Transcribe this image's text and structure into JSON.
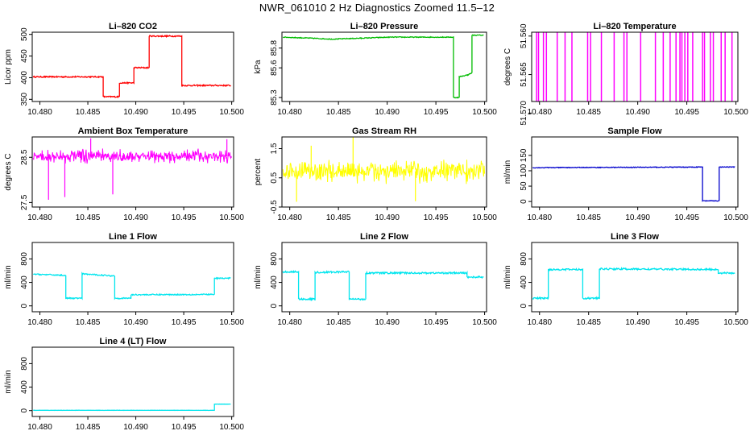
{
  "page_title": "NWR_061010  2 Hz Diagnostics Zoomed 11.5–12",
  "colors": {
    "co2": "#ff0000",
    "pressure": "#00bb00",
    "temperature": "#ff00ff",
    "box_temp": "#ff00ff",
    "rh": "#ffff00",
    "sample_flow": "#0000cc",
    "line_flow": "#00e5ee"
  },
  "chart_data": [
    {
      "id": "co2",
      "type": "line",
      "title": "Li–820 CO2",
      "ylabel": "Licor ppm",
      "xlim": [
        10.4792,
        10.5002
      ],
      "ylim": [
        345,
        505
      ],
      "xticks": [
        "10.480",
        "10.485",
        "10.490",
        "10.495",
        "10.500"
      ],
      "xtick_values": [
        10.48,
        10.485,
        10.49,
        10.495,
        10.5
      ],
      "yticks": [
        "350",
        "400",
        "450",
        "500"
      ],
      "ytick_values": [
        350,
        400,
        450,
        500
      ],
      "series": [
        {
          "color_key": "co2",
          "noise": 1.5,
          "points": [
            [
              10.4793,
              402
            ],
            [
              10.4866,
              402
            ],
            [
              10.4866,
              356
            ],
            [
              10.4883,
              356
            ],
            [
              10.4883,
              388
            ],
            [
              10.4898,
              388
            ],
            [
              10.4898,
              423
            ],
            [
              10.4914,
              423
            ],
            [
              10.4914,
              496
            ],
            [
              10.4948,
              496
            ],
            [
              10.4948,
              382
            ],
            [
              10.4999,
              382
            ]
          ]
        }
      ]
    },
    {
      "id": "pressure",
      "type": "line",
      "title": "Li–820 Pressure",
      "ylabel": "kPa",
      "xlim": [
        10.4792,
        10.5002
      ],
      "ylim": [
        85.26,
        85.96
      ],
      "xticks": [
        "10.480",
        "10.485",
        "10.490",
        "10.495",
        "10.500"
      ],
      "xtick_values": [
        10.48,
        10.485,
        10.49,
        10.495,
        10.5
      ],
      "yticks": [
        "85.3",
        "85.6",
        "85.8"
      ],
      "ytick_values": [
        85.3,
        85.6,
        85.8
      ],
      "series": [
        {
          "color_key": "pressure",
          "noise": 0.004,
          "points": [
            [
              10.4793,
              85.91
            ],
            [
              10.4822,
              85.9
            ],
            [
              10.4843,
              85.89
            ],
            [
              10.4873,
              85.9
            ],
            [
              10.4903,
              85.91
            ],
            [
              10.4935,
              85.91
            ],
            [
              10.4968,
              85.91
            ],
            [
              10.4968,
              85.3
            ],
            [
              10.4974,
              85.3
            ],
            [
              10.4974,
              85.51
            ],
            [
              10.4983,
              85.53
            ],
            [
              10.4987,
              85.55
            ],
            [
              10.4987,
              85.93
            ],
            [
              10.4999,
              85.93
            ]
          ]
        }
      ]
    },
    {
      "id": "licor_temp",
      "type": "spikes",
      "title": "Li–820 Temperature",
      "ylabel": "degrees C",
      "xlim": [
        10.4792,
        10.5002
      ],
      "ylim": [
        51.5685,
        51.5595
      ],
      "xticks": [
        "10.480",
        "10.485",
        "10.490",
        "10.495",
        "10.500"
      ],
      "xtick_values": [
        10.48,
        10.485,
        10.49,
        10.495,
        10.5
      ],
      "yticks": [
        "51.570",
        "51.565",
        "51.560"
      ],
      "ytick_values": [
        51.57,
        51.565,
        51.56
      ],
      "baseline": 51.5705,
      "spike_top": 51.5589,
      "spikes": [
        10.4797,
        10.4799,
        10.4804,
        10.4807,
        10.4818,
        10.4826,
        10.4833,
        10.4849,
        10.4852,
        10.4863,
        10.4876,
        10.4886,
        10.4889,
        10.4903,
        10.4918,
        10.4926,
        10.4933,
        10.4939,
        10.4943,
        10.4945,
        10.4948,
        10.4951,
        10.4956,
        10.4966,
        10.4968,
        10.4974,
        10.4977,
        10.4985,
        10.4989,
        10.4996
      ],
      "series": [
        {
          "color_key": "temperature"
        }
      ]
    },
    {
      "id": "box_temp",
      "type": "noise",
      "title": "Ambient Box Temperature",
      "ylabel": "degrees C",
      "xlim": [
        10.4792,
        10.5002
      ],
      "ylim": [
        27.4,
        28.95
      ],
      "xticks": [
        "10.480",
        "10.485",
        "10.490",
        "10.495",
        "10.500"
      ],
      "xtick_values": [
        10.48,
        10.485,
        10.49,
        10.495,
        10.5
      ],
      "yticks": [
        "27.5",
        "28.5"
      ],
      "ytick_values": [
        27.5,
        28.5
      ],
      "mean": 28.52,
      "spread": 0.12,
      "outliers": [
        [
          10.4809,
          27.56
        ],
        [
          10.4826,
          27.62
        ],
        [
          10.4876,
          27.68
        ],
        [
          10.4853,
          28.92
        ],
        [
          10.4995,
          28.9
        ]
      ],
      "series": [
        {
          "color_key": "box_temp"
        }
      ]
    },
    {
      "id": "rh",
      "type": "noise",
      "title": "Gas Stream RH",
      "ylabel": "percent",
      "xlim": [
        10.4792,
        10.5002
      ],
      "ylim": [
        -0.5,
        1.9
      ],
      "xticks": [
        "10.480",
        "10.485",
        "10.490",
        "10.495",
        "10.500"
      ],
      "xtick_values": [
        10.48,
        10.485,
        10.49,
        10.495,
        10.5
      ],
      "yticks": [
        "-0.5",
        "0.5",
        "1.5"
      ],
      "ytick_values": [
        -0.5,
        0.5,
        1.5
      ],
      "mean": 0.72,
      "spread": 0.32,
      "outliers": [
        [
          10.4865,
          1.95
        ],
        [
          10.4807,
          -0.32
        ],
        [
          10.4822,
          1.6
        ],
        [
          10.4929,
          -0.3
        ]
      ],
      "series": [
        {
          "color_key": "rh"
        }
      ]
    },
    {
      "id": "sample_flow",
      "type": "line",
      "title": "Sample Flow",
      "ylabel": "ml/min",
      "xlim": [
        10.4792,
        10.5002
      ],
      "ylim": [
        -18,
        210
      ],
      "xticks": [
        "10.480",
        "10.485",
        "10.490",
        "10.495",
        "10.500"
      ],
      "xtick_values": [
        10.48,
        10.485,
        10.49,
        10.495,
        10.5
      ],
      "yticks": [
        "0",
        "50",
        "100",
        "150"
      ],
      "ytick_values": [
        0,
        50,
        100,
        150
      ],
      "series": [
        {
          "color_key": "sample_flow",
          "noise": 1.2,
          "points": [
            [
              10.4793,
              110
            ],
            [
              10.4966,
              112
            ],
            [
              10.4966,
              2
            ],
            [
              10.4983,
              2
            ],
            [
              10.4983,
              112
            ],
            [
              10.4999,
              112
            ]
          ]
        }
      ]
    },
    {
      "id": "line1",
      "type": "line",
      "title": "Line 1 Flow",
      "ylabel": "ml/min",
      "xlim": [
        10.4792,
        10.5002
      ],
      "ylim": [
        -100,
        1080
      ],
      "xticks": [
        "10.480",
        "10.485",
        "10.490",
        "10.495",
        "10.500"
      ],
      "xtick_values": [
        10.48,
        10.485,
        10.49,
        10.495,
        10.5
      ],
      "yticks": [
        "0",
        "400",
        "800"
      ],
      "ytick_values": [
        0,
        400,
        800
      ],
      "series": [
        {
          "color_key": "line_flow",
          "noise": 10,
          "points": [
            [
              10.4793,
              540
            ],
            [
              10.4827,
              520
            ],
            [
              10.4827,
              130
            ],
            [
              10.4844,
              130
            ],
            [
              10.4844,
              545
            ],
            [
              10.4878,
              510
            ],
            [
              10.4878,
              130
            ],
            [
              10.4895,
              130
            ],
            [
              10.4895,
              190
            ],
            [
              10.4982,
              195
            ],
            [
              10.4982,
              470
            ],
            [
              10.4999,
              470
            ]
          ]
        }
      ]
    },
    {
      "id": "line2",
      "type": "line",
      "title": "Line 2 Flow",
      "ylabel": "ml/min",
      "xlim": [
        10.4792,
        10.5002
      ],
      "ylim": [
        -100,
        1080
      ],
      "xticks": [
        "10.480",
        "10.485",
        "10.490",
        "10.495",
        "10.500"
      ],
      "xtick_values": [
        10.48,
        10.485,
        10.49,
        10.495,
        10.5
      ],
      "yticks": [
        "0",
        "400",
        "800"
      ],
      "ytick_values": [
        0,
        400,
        800
      ],
      "series": [
        {
          "color_key": "line_flow",
          "noise": 14,
          "points": [
            [
              10.4793,
              580
            ],
            [
              10.4809,
              580
            ],
            [
              10.4809,
              115
            ],
            [
              10.4826,
              115
            ],
            [
              10.4826,
              570
            ],
            [
              10.4861,
              580
            ],
            [
              10.4861,
              115
            ],
            [
              10.4878,
              115
            ],
            [
              10.4878,
              560
            ],
            [
              10.4982,
              560
            ],
            [
              10.4982,
              490
            ],
            [
              10.4999,
              490
            ]
          ]
        }
      ]
    },
    {
      "id": "line3",
      "type": "line",
      "title": "Line 3 Flow",
      "ylabel": "ml/min",
      "xlim": [
        10.4792,
        10.5002
      ],
      "ylim": [
        -100,
        1080
      ],
      "xticks": [
        "10.480",
        "10.485",
        "10.490",
        "10.495",
        "10.500"
      ],
      "xtick_values": [
        10.48,
        10.485,
        10.49,
        10.495,
        10.5
      ],
      "yticks": [
        "0",
        "400",
        "800"
      ],
      "ytick_values": [
        0,
        400,
        800
      ],
      "series": [
        {
          "color_key": "line_flow",
          "noise": 14,
          "points": [
            [
              10.4793,
              130
            ],
            [
              10.4809,
              130
            ],
            [
              10.4809,
              620
            ],
            [
              10.4844,
              620
            ],
            [
              10.4844,
              130
            ],
            [
              10.4861,
              130
            ],
            [
              10.4861,
              630
            ],
            [
              10.4982,
              620
            ],
            [
              10.4982,
              560
            ],
            [
              10.4999,
              560
            ]
          ]
        }
      ]
    },
    {
      "id": "line4",
      "type": "line",
      "title": "Line 4 (LT) Flow",
      "ylabel": "ml/min",
      "xlim": [
        10.4792,
        10.5002
      ],
      "ylim": [
        -100,
        1080
      ],
      "xticks": [
        "10.480",
        "10.485",
        "10.490",
        "10.495",
        "10.500"
      ],
      "xtick_values": [
        10.48,
        10.485,
        10.49,
        10.495,
        10.5
      ],
      "yticks": [
        "0",
        "400",
        "800"
      ],
      "ytick_values": [
        0,
        400,
        800
      ],
      "series": [
        {
          "color_key": "line_flow",
          "noise": 1.5,
          "points": [
            [
              10.4793,
              5
            ],
            [
              10.4982,
              5
            ],
            [
              10.4982,
              110
            ],
            [
              10.4999,
              110
            ]
          ]
        }
      ]
    }
  ]
}
